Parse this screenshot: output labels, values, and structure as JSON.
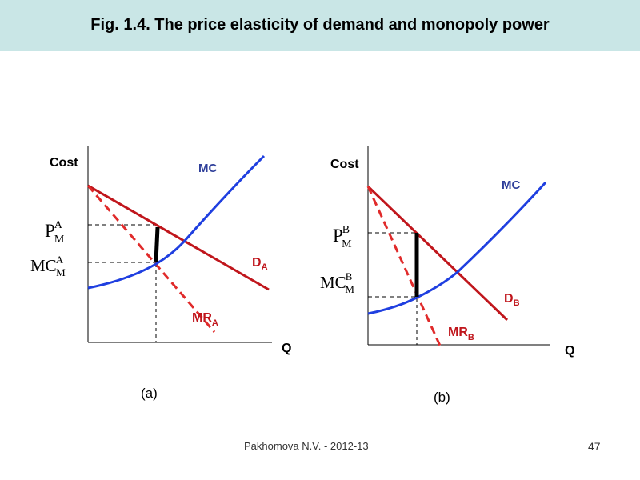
{
  "title": "Fig. 1.4. The price elasticity of demand  and monopoly power",
  "footer": {
    "author": "Pakhomova N.V. - 2012-13",
    "page": "47"
  },
  "colors": {
    "title_bg": "#c9e6e6",
    "mc": "#1f3fe0",
    "demand": "#c0161c",
    "mr": "#e02a2a",
    "mc_label": "#2f3f9a",
    "demand_label": "#c0161c",
    "axis": "#000000",
    "power_bar": "#000000"
  },
  "panel_a": {
    "caption": "(a)",
    "y_axis_label": "Cost",
    "x_axis_label": "Q",
    "mc_label": "MC",
    "demand_label": {
      "main": "D",
      "sub": "A"
    },
    "mr_label": {
      "main": "MR",
      "sub": "A"
    },
    "price_label": {
      "main": "P",
      "sub": "M",
      "sup": "A"
    },
    "mc_level_label": {
      "main": "MC",
      "sub": "M",
      "sup": "A"
    }
  },
  "panel_b": {
    "caption": "(b)",
    "y_axis_label": "Cost",
    "x_axis_label": "Q",
    "mc_label": "MC",
    "demand_label": {
      "main": "D",
      "sub": "B"
    },
    "mr_label": {
      "main": "MR",
      "sub": "B"
    },
    "price_label": {
      "main": "P",
      "sub": "M",
      "sup": "B"
    },
    "mc_level_label": {
      "main": "MC",
      "sub": "M",
      "sup": "B"
    }
  }
}
